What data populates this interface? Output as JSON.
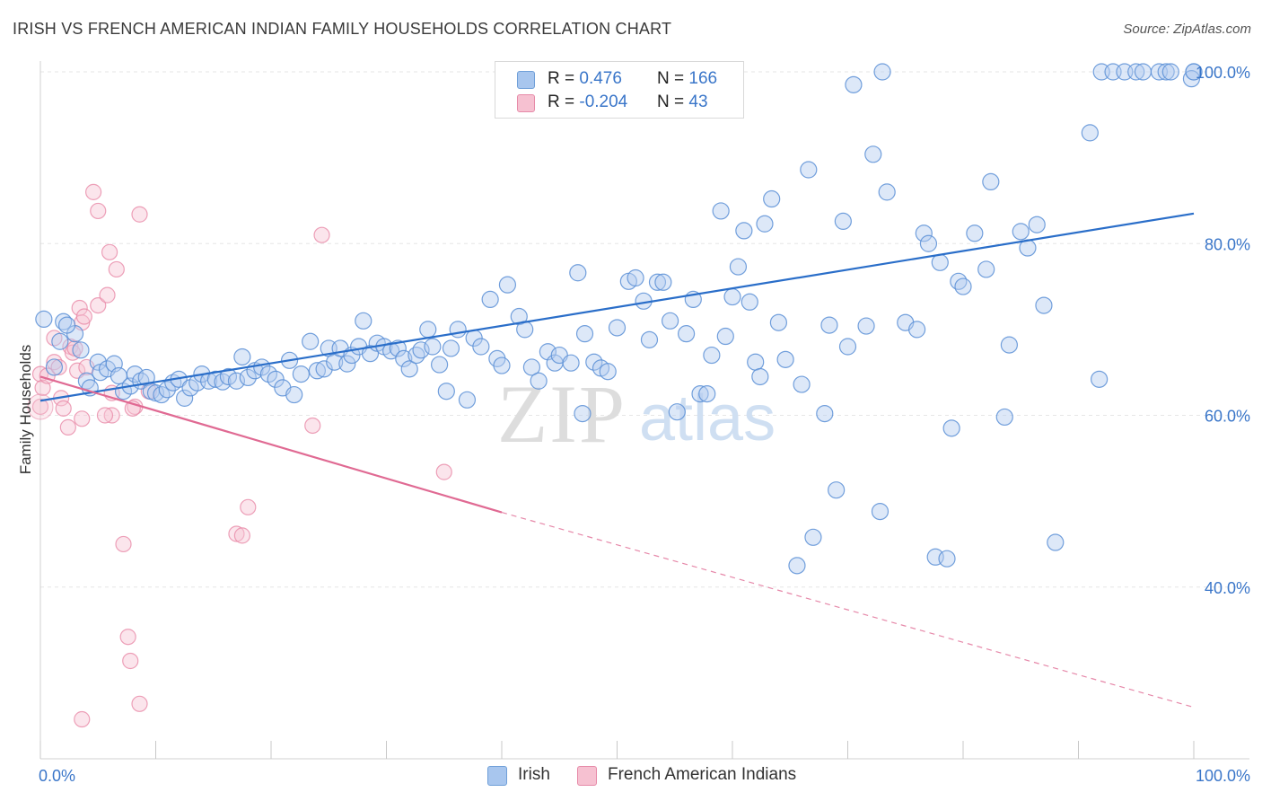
{
  "title": "IRISH VS FRENCH AMERICAN INDIAN FAMILY HOUSEHOLDS CORRELATION CHART",
  "source_prefix": "Source: ",
  "source_site": "ZipAtlas.com",
  "watermark": {
    "zip": "ZIP",
    "atlas": "atlas"
  },
  "legend": {
    "rows": [
      {
        "r_label": "R = ",
        "r_value": "0.476",
        "n_label": "N = ",
        "n_value": "166",
        "color": "#a8c6ee",
        "stroke": "#6f9fd8"
      },
      {
        "r_label": "R = ",
        "r_value": "-0.204",
        "n_label": "N = ",
        "n_value": "43",
        "color": "#f6c1d1",
        "stroke": "#e68aa8"
      }
    ]
  },
  "bottom_legend": [
    "Irish",
    "French American Indians"
  ],
  "chart_data": {
    "type": "scatter",
    "title": "IRISH VS FRENCH AMERICAN INDIAN FAMILY HOUSEHOLDS CORRELATION CHART",
    "ylabel": "Family Households",
    "xlabel": "",
    "xlim": [
      0,
      100
    ],
    "ylim": [
      20,
      101
    ],
    "x_tick_labels": [
      "0.0%",
      "100.0%"
    ],
    "y_ticks": [
      40,
      60,
      80,
      100
    ],
    "y_tick_labels": [
      "40.0%",
      "60.0%",
      "80.0%",
      "100.0%"
    ],
    "grid": true,
    "colors": {
      "irish": "#5b8fd6",
      "irish_fill": "#b4cdf0",
      "irish_line": "#2a6ec9",
      "french": "#e88aa8",
      "french_fill": "#f7c6d5",
      "french_line": "#e06a93"
    },
    "series": [
      {
        "name": "Irish",
        "trend": {
          "x0": 0,
          "y0": 61.7,
          "x1": 100,
          "y1": 83.5
        },
        "points": [
          [
            0.3,
            71.2
          ],
          [
            2,
            70.9
          ],
          [
            1.7,
            68.6
          ],
          [
            3,
            69.5
          ],
          [
            2.3,
            70.5
          ],
          [
            3.5,
            67.6
          ],
          [
            4,
            64.0
          ],
          [
            4.3,
            63.2
          ],
          [
            5,
            66.2
          ],
          [
            5.2,
            65.0
          ],
          [
            5.8,
            65.4
          ],
          [
            6.4,
            66.0
          ],
          [
            6.8,
            64.6
          ],
          [
            7.2,
            62.8
          ],
          [
            7.8,
            63.4
          ],
          [
            8.2,
            64.8
          ],
          [
            8.7,
            64.0
          ],
          [
            9.2,
            64.4
          ],
          [
            9.6,
            62.8
          ],
          [
            10,
            62.6
          ],
          [
            10.5,
            62.4
          ],
          [
            11,
            63.0
          ],
          [
            11.5,
            63.8
          ],
          [
            12,
            64.2
          ],
          [
            12.5,
            62.0
          ],
          [
            13,
            63.2
          ],
          [
            13.6,
            63.8
          ],
          [
            14,
            64.8
          ],
          [
            14.6,
            64.0
          ],
          [
            15.2,
            64.2
          ],
          [
            15.8,
            63.9
          ],
          [
            16.3,
            64.5
          ],
          [
            17,
            64.0
          ],
          [
            17.5,
            66.8
          ],
          [
            18,
            64.4
          ],
          [
            18.6,
            65.2
          ],
          [
            19.2,
            65.6
          ],
          [
            19.8,
            64.8
          ],
          [
            20.4,
            64.2
          ],
          [
            21,
            63.2
          ],
          [
            21.6,
            66.4
          ],
          [
            22,
            62.4
          ],
          [
            22.6,
            64.8
          ],
          [
            23.4,
            68.6
          ],
          [
            24,
            65.2
          ],
          [
            24.6,
            65.4
          ],
          [
            25,
            67.8
          ],
          [
            25.5,
            66.2
          ],
          [
            26,
            67.8
          ],
          [
            26.6,
            66.0
          ],
          [
            27,
            67.0
          ],
          [
            27.6,
            68.0
          ],
          [
            28,
            71.0
          ],
          [
            28.6,
            67.2
          ],
          [
            29.2,
            68.4
          ],
          [
            29.8,
            68.0
          ],
          [
            30.4,
            67.5
          ],
          [
            31,
            67.8
          ],
          [
            31.5,
            66.6
          ],
          [
            32,
            65.4
          ],
          [
            32.6,
            67.0
          ],
          [
            33,
            67.6
          ],
          [
            33.6,
            70.0
          ],
          [
            34,
            68.0
          ],
          [
            34.6,
            65.9
          ],
          [
            35.2,
            62.8
          ],
          [
            35.6,
            67.8
          ],
          [
            36.2,
            70.0
          ],
          [
            37,
            61.8
          ],
          [
            37.6,
            69.0
          ],
          [
            38.2,
            68.0
          ],
          [
            39,
            73.5
          ],
          [
            39.6,
            66.6
          ],
          [
            40,
            65.8
          ],
          [
            40.5,
            75.2
          ],
          [
            41.5,
            71.5
          ],
          [
            42,
            70.0
          ],
          [
            42.6,
            65.6
          ],
          [
            43.2,
            64.0
          ],
          [
            44,
            67.4
          ],
          [
            44.6,
            66.1
          ],
          [
            45,
            67.0
          ],
          [
            46,
            66.1
          ],
          [
            46.6,
            76.6
          ],
          [
            47.2,
            69.5
          ],
          [
            48,
            66.2
          ],
          [
            48.6,
            65.5
          ],
          [
            49.2,
            65.1
          ],
          [
            50,
            70.2
          ],
          [
            51,
            75.6
          ],
          [
            51.6,
            76.0
          ],
          [
            52.3,
            73.3
          ],
          [
            52.8,
            68.8
          ],
          [
            53.5,
            75.5
          ],
          [
            54,
            75.5
          ],
          [
            54.6,
            71.0
          ],
          [
            55.2,
            60.4
          ],
          [
            56,
            69.5
          ],
          [
            56.6,
            73.5
          ],
          [
            57.2,
            62.5
          ],
          [
            57.8,
            62.5
          ],
          [
            58.2,
            67.0
          ],
          [
            59,
            83.8
          ],
          [
            59.4,
            69.2
          ],
          [
            60,
            73.8
          ],
          [
            60.5,
            77.3
          ],
          [
            61,
            81.5
          ],
          [
            61.5,
            73.2
          ],
          [
            62,
            66.2
          ],
          [
            62.4,
            64.5
          ],
          [
            62.8,
            82.3
          ],
          [
            63.4,
            85.2
          ],
          [
            64,
            70.8
          ],
          [
            64.6,
            66.5
          ],
          [
            65.6,
            42.5
          ],
          [
            66,
            63.6
          ],
          [
            66.6,
            88.6
          ],
          [
            67,
            45.8
          ],
          [
            68,
            60.2
          ],
          [
            68.4,
            70.5
          ],
          [
            69,
            51.3
          ],
          [
            69.6,
            82.6
          ],
          [
            70,
            68.0
          ],
          [
            70.5,
            98.5
          ],
          [
            71.6,
            70.4
          ],
          [
            72.2,
            90.4
          ],
          [
            72.8,
            48.8
          ],
          [
            73,
            100
          ],
          [
            73.4,
            86.0
          ],
          [
            75,
            70.8
          ],
          [
            76,
            70.0
          ],
          [
            76.6,
            81.2
          ],
          [
            77,
            80.0
          ],
          [
            77.6,
            43.5
          ],
          [
            78,
            77.8
          ],
          [
            78.6,
            43.3
          ],
          [
            79,
            58.5
          ],
          [
            79.6,
            75.6
          ],
          [
            80,
            75.0
          ],
          [
            81,
            81.2
          ],
          [
            82,
            77.0
          ],
          [
            82.4,
            87.2
          ],
          [
            83.6,
            59.8
          ],
          [
            84,
            68.2
          ],
          [
            85,
            81.4
          ],
          [
            85.6,
            79.5
          ],
          [
            86.4,
            82.2
          ],
          [
            87,
            72.8
          ],
          [
            88,
            45.2
          ],
          [
            91,
            92.9
          ],
          [
            91.8,
            64.2
          ],
          [
            92,
            100
          ],
          [
            93,
            100
          ],
          [
            94,
            100
          ],
          [
            95,
            100
          ],
          [
            95.6,
            100
          ],
          [
            97,
            100
          ],
          [
            97.6,
            100
          ],
          [
            98,
            100
          ],
          [
            100,
            100
          ],
          [
            99.8,
            99.2
          ],
          [
            100,
            100
          ],
          [
            1.2,
            65.6
          ],
          [
            47,
            60.2
          ]
        ]
      },
      {
        "name": "French American Indians",
        "trend": {
          "x0": 0,
          "y0": 64.5,
          "x1": 40,
          "y1": 48.7,
          "dash_to": {
            "x": 100,
            "y": 26.0
          }
        },
        "points": [
          [
            0,
            64.8
          ],
          [
            0.2,
            63.2
          ],
          [
            0,
            61.0
          ],
          [
            0.6,
            64.6
          ],
          [
            1.2,
            69.0
          ],
          [
            1.2,
            66.2
          ],
          [
            1.6,
            65.6
          ],
          [
            1.8,
            62.0
          ],
          [
            2,
            60.8
          ],
          [
            2.4,
            58.6
          ],
          [
            2.6,
            68.0
          ],
          [
            2.8,
            67.3
          ],
          [
            3,
            67.8
          ],
          [
            3.2,
            65.2
          ],
          [
            3.4,
            72.5
          ],
          [
            3.6,
            70.8
          ],
          [
            3.8,
            71.5
          ],
          [
            4,
            65.6
          ],
          [
            3.6,
            59.6
          ],
          [
            4.6,
            86.0
          ],
          [
            5.0,
            83.8
          ],
          [
            5.0,
            72.8
          ],
          [
            5.8,
            74.0
          ],
          [
            6.0,
            79.0
          ],
          [
            6.2,
            62.6
          ],
          [
            6.2,
            60.0
          ],
          [
            6.6,
            77.0
          ],
          [
            7.2,
            45.0
          ],
          [
            7.6,
            34.2
          ],
          [
            7.8,
            31.4
          ],
          [
            8.6,
            83.4
          ],
          [
            8.6,
            26.4
          ],
          [
            8.2,
            61.0
          ],
          [
            9.4,
            62.8
          ],
          [
            17,
            46.2
          ],
          [
            17.5,
            46.0
          ],
          [
            18,
            49.3
          ],
          [
            23.6,
            58.8
          ],
          [
            24.4,
            81.0
          ],
          [
            35,
            53.4
          ],
          [
            3.6,
            24.6
          ],
          [
            8,
            60.8
          ],
          [
            5.6,
            60.0
          ]
        ]
      }
    ]
  }
}
